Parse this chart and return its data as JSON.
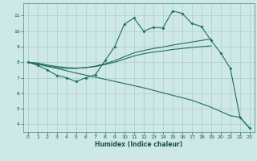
{
  "xlabel": "Humidex (Indice chaleur)",
  "xlim": [
    -0.5,
    23.5
  ],
  "ylim": [
    3.5,
    11.8
  ],
  "yticks": [
    4,
    5,
    6,
    7,
    8,
    9,
    10,
    11
  ],
  "xticks": [
    0,
    1,
    2,
    3,
    4,
    5,
    6,
    7,
    8,
    9,
    10,
    11,
    12,
    13,
    14,
    15,
    16,
    17,
    18,
    19,
    20,
    21,
    22,
    23
  ],
  "bg_color": "#cde8e5",
  "grid_color": "#b0ccca",
  "line_color": "#1e6e65",
  "line1_x": [
    0,
    1,
    2,
    3,
    4,
    5,
    6,
    7,
    8,
    9,
    10,
    11,
    12,
    13,
    14,
    15,
    16,
    17,
    18,
    19,
    20,
    21,
    22,
    23
  ],
  "line1_y": [
    8.0,
    7.8,
    7.5,
    7.15,
    7.0,
    6.75,
    7.0,
    7.2,
    8.1,
    9.0,
    10.45,
    10.85,
    10.0,
    10.25,
    10.2,
    11.3,
    11.15,
    10.5,
    10.3,
    9.4,
    8.6,
    7.6,
    4.45,
    3.75
  ],
  "line2_x": [
    0,
    1,
    2,
    3,
    4,
    5,
    6,
    7,
    8,
    9,
    10,
    11,
    12,
    13,
    14,
    15,
    16,
    17,
    18,
    19
  ],
  "line2_y": [
    8.0,
    7.9,
    7.75,
    7.65,
    7.6,
    7.6,
    7.65,
    7.75,
    7.9,
    8.1,
    8.35,
    8.6,
    8.75,
    8.88,
    8.98,
    9.1,
    9.2,
    9.3,
    9.4,
    9.5
  ],
  "line3_x": [
    0,
    1,
    2,
    3,
    4,
    5,
    6,
    7,
    8,
    9,
    10,
    11,
    12,
    13,
    14,
    15,
    16,
    17,
    18,
    19
  ],
  "line3_y": [
    8.0,
    7.95,
    7.82,
    7.72,
    7.65,
    7.62,
    7.65,
    7.72,
    7.85,
    8.0,
    8.2,
    8.4,
    8.55,
    8.65,
    8.72,
    8.82,
    8.88,
    8.95,
    9.0,
    9.05
  ],
  "line4_x": [
    0,
    3,
    5,
    8,
    12,
    17,
    19,
    21,
    22,
    23
  ],
  "line4_y": [
    8.0,
    7.6,
    7.3,
    6.9,
    6.35,
    5.55,
    5.1,
    4.55,
    4.45,
    3.75
  ]
}
